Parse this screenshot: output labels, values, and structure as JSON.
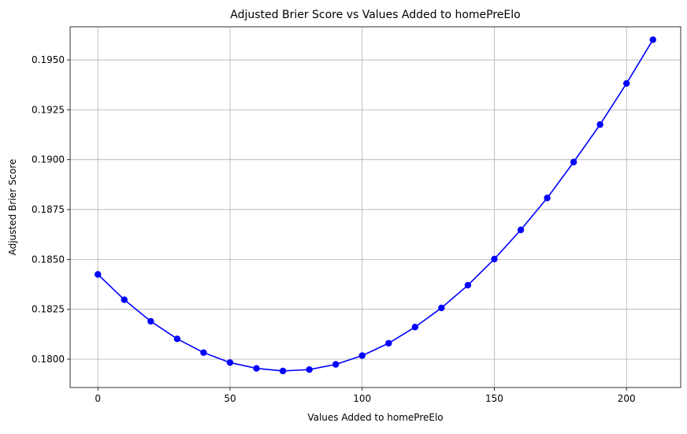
{
  "chart_data": {
    "type": "line",
    "title": "Adjusted Brier Score vs Values Added to homePreElo",
    "xlabel": "Values Added to homePreElo",
    "ylabel": "Adjusted Brier Score",
    "xlim": [
      -10.5,
      220.5
    ],
    "ylim": [
      0.17858,
      0.19666
    ],
    "xticks": [
      0,
      50,
      100,
      150,
      200
    ],
    "yticks": [
      0.18,
      0.1825,
      0.185,
      0.1875,
      0.19,
      0.1925,
      0.195
    ],
    "grid": true,
    "color": "#0000ff",
    "marker": "circle",
    "x": [
      0,
      10,
      20,
      30,
      40,
      50,
      60,
      70,
      80,
      90,
      100,
      110,
      120,
      130,
      140,
      150,
      160,
      170,
      180,
      190,
      200,
      210
    ],
    "series": [
      {
        "values": [
          0.18425,
          0.18298,
          0.1819,
          0.18102,
          0.18033,
          0.17983,
          0.17954,
          0.17941,
          0.17948,
          0.17974,
          0.18018,
          0.1808,
          0.18161,
          0.18257,
          0.18371,
          0.18502,
          0.18648,
          0.18808,
          0.18988,
          0.19176,
          0.19382,
          0.19601
        ]
      }
    ]
  }
}
